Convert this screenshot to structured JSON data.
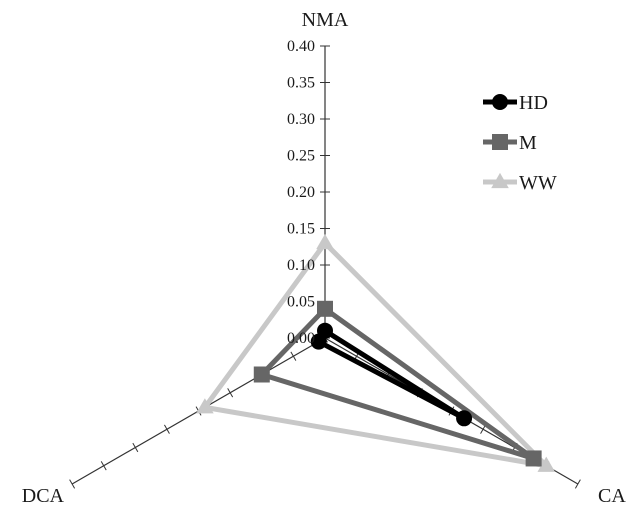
{
  "chart_data": {
    "type": "radar",
    "axes": [
      "NMA",
      "CA",
      "DCA"
    ],
    "radial_ticks": [
      "0.00",
      "0.05",
      "0.10",
      "0.15",
      "0.20",
      "0.25",
      "0.30",
      "0.35",
      "0.40"
    ],
    "rlim": [
      0,
      0.4
    ],
    "legend_position": "top-right",
    "series": [
      {
        "name": "HD",
        "values": [
          0.01,
          0.22,
          0.01
        ],
        "color": "#000000",
        "marker": "circle"
      },
      {
        "name": "M",
        "values": [
          0.04,
          0.33,
          0.1
        ],
        "color": "#666666",
        "marker": "square"
      },
      {
        "name": "WW",
        "values": [
          0.13,
          0.35,
          0.19
        ],
        "color": "#c8c8c8",
        "marker": "triangle"
      }
    ]
  }
}
